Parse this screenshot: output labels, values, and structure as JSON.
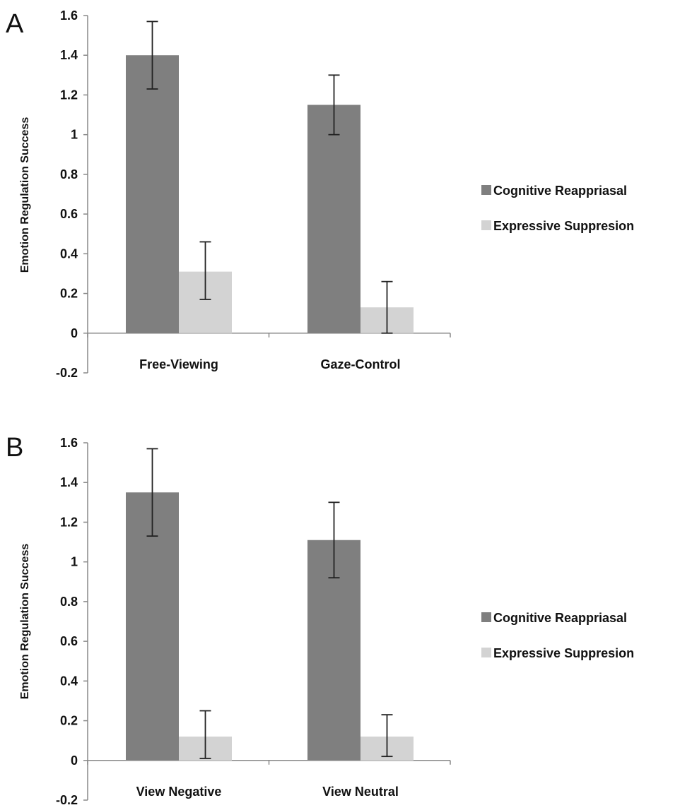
{
  "chart_data": [
    {
      "type": "bar",
      "panel_label": "A",
      "categories": [
        "Free-Viewing",
        "Gaze-Control"
      ],
      "series": [
        {
          "name": "Cognitive Reappriasal",
          "color": "#7f7f7f",
          "values": [
            1.4,
            1.15
          ],
          "error": [
            [
              1.23,
              1.57
            ],
            [
              1.0,
              1.3
            ]
          ]
        },
        {
          "name": "Expressive Suppresion",
          "color": "#d3d3d3",
          "values": [
            0.31,
            0.13
          ],
          "error": [
            [
              0.17,
              0.46
            ],
            [
              0.0,
              0.26
            ]
          ]
        }
      ],
      "ylabel": "Emotion Regulation Success",
      "xlabel": "",
      "ylim": [
        -0.2,
        1.6
      ],
      "yticks": [
        "-0.2",
        "0",
        "0.2",
        "0.4",
        "0.6",
        "0.8",
        "1",
        "1.2",
        "1.4",
        "1.6"
      ],
      "grid": false,
      "legend_position": "right"
    },
    {
      "type": "bar",
      "panel_label": "B",
      "categories": [
        "View Negative",
        "View Neutral"
      ],
      "series": [
        {
          "name": "Cognitive Reappriasal",
          "color": "#7f7f7f",
          "values": [
            1.35,
            1.11
          ],
          "error": [
            [
              1.13,
              1.57
            ],
            [
              0.92,
              1.3
            ]
          ]
        },
        {
          "name": "Expressive Suppresion",
          "color": "#d3d3d3",
          "values": [
            0.12,
            0.12
          ],
          "error": [
            [
              0.01,
              0.25
            ],
            [
              0.02,
              0.23
            ]
          ]
        }
      ],
      "ylabel": "Emotion Regulation Success",
      "xlabel": "",
      "ylim": [
        -0.2,
        1.6
      ],
      "yticks": [
        "-0.2",
        "0",
        "0.2",
        "0.4",
        "0.6",
        "0.8",
        "1",
        "1.2",
        "1.4",
        "1.6"
      ],
      "grid": false,
      "legend_position": "right"
    }
  ]
}
